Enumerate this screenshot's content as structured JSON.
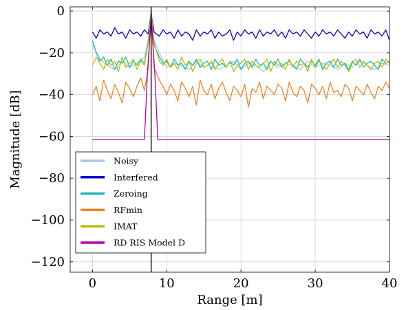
{
  "chart_data": {
    "type": "line",
    "xlabel": "Range [m]",
    "ylabel": "Magnitude [dB]",
    "xlim": [
      -3,
      40
    ],
    "ylim": [
      -125,
      2
    ],
    "xticks": [
      0,
      10,
      20,
      30,
      40
    ],
    "xtick_labels": [
      "0",
      "10",
      "20",
      "30",
      "40"
    ],
    "yticks": [
      0,
      -20,
      -40,
      -60,
      -80,
      -100,
      -120
    ],
    "ytick_labels": [
      "0",
      "−20",
      "−40",
      "−60",
      "−80",
      "−100",
      "−120"
    ],
    "grid": true,
    "legend_position": "bottom-left",
    "marker_line": {
      "x": 7.9,
      "color": "#000000"
    },
    "series": [
      {
        "name": "Noisy",
        "color": "#a6c8ee",
        "x": [
          0,
          1,
          2,
          3,
          4,
          5,
          6,
          7,
          7.5,
          7.9,
          8.3,
          9,
          10,
          11,
          12,
          13,
          14,
          15,
          16,
          17,
          18,
          19,
          20,
          21,
          22,
          23,
          24,
          25,
          26,
          27,
          28,
          29,
          30,
          31,
          32,
          33,
          34,
          35,
          36,
          37,
          38,
          39,
          40
        ],
        "y": [
          -16,
          -23,
          -26,
          -28,
          -24,
          -27,
          -25,
          -22,
          -14,
          0,
          -14,
          -20,
          -27,
          -25,
          -26,
          -28,
          -24,
          -27,
          -25,
          -28,
          -26,
          -24,
          -28,
          -25,
          -26,
          -29,
          -24,
          -27,
          -25,
          -26,
          -28,
          -24,
          -27,
          -25,
          -26,
          -28,
          -25,
          -27,
          -24,
          -26,
          -28,
          -25,
          -26
        ]
      },
      {
        "name": "Interfered",
        "color": "#0000cc",
        "x": [
          0,
          0.5,
          1,
          1.5,
          2,
          2.5,
          3,
          3.5,
          4,
          4.5,
          5,
          5.5,
          6,
          6.5,
          7,
          7.5,
          7.9,
          8.3,
          9,
          9.5,
          10,
          10.5,
          11,
          11.5,
          12,
          12.5,
          13,
          13.5,
          14,
          14.5,
          15,
          15.5,
          16,
          16.5,
          17,
          17.5,
          18,
          18.5,
          19,
          19.5,
          20,
          20.5,
          21,
          21.5,
          22,
          22.5,
          23,
          23.5,
          24,
          24.5,
          25,
          25.5,
          26,
          26.5,
          27,
          27.5,
          28,
          28.5,
          29,
          29.5,
          30,
          30.5,
          31,
          31.5,
          32,
          32.5,
          33,
          33.5,
          34,
          34.5,
          35,
          35.5,
          36,
          36.5,
          37,
          37.5,
          38,
          38.5,
          39,
          39.5,
          40
        ],
        "y": [
          -10,
          -13,
          -9,
          -11,
          -10,
          -12,
          -8,
          -11,
          -10,
          -13,
          -9,
          -11,
          -10,
          -12,
          -9,
          -11,
          -1,
          -10,
          -12,
          -9,
          -11,
          -10,
          -13,
          -9,
          -12,
          -10,
          -11,
          -14,
          -9,
          -12,
          -10,
          -11,
          -9,
          -13,
          -10,
          -12,
          -11,
          -9,
          -14,
          -10,
          -12,
          -9,
          -11,
          -10,
          -13,
          -9,
          -12,
          -10,
          -11,
          -9,
          -12,
          -10,
          -13,
          -9,
          -11,
          -10,
          -12,
          -9,
          -11,
          -13,
          -10,
          -12,
          -9,
          -11,
          -10,
          -12,
          -9,
          -11,
          -13,
          -10,
          -12,
          -9,
          -11,
          -10,
          -13,
          -9,
          -11,
          -10,
          -12,
          -9,
          -14
        ]
      },
      {
        "name": "Zeroing",
        "color": "#17b9b5",
        "x": [
          0,
          0.5,
          1,
          1.5,
          2,
          2.5,
          3,
          3.5,
          4,
          4.5,
          5,
          5.5,
          6,
          6.5,
          7,
          7.5,
          7.9,
          8.3,
          9,
          9.5,
          10,
          10.5,
          11,
          11.5,
          12,
          12.5,
          13,
          13.5,
          14,
          14.5,
          15,
          15.5,
          16,
          16.5,
          17,
          17.5,
          18,
          18.5,
          19,
          19.5,
          20,
          20.5,
          21,
          21.5,
          22,
          22.5,
          23,
          23.5,
          24,
          24.5,
          25,
          25.5,
          26,
          26.5,
          27,
          27.5,
          28,
          28.5,
          29,
          29.5,
          30,
          30.5,
          31,
          31.5,
          32,
          32.5,
          33,
          33.5,
          34,
          34.5,
          35,
          35.5,
          36,
          36.5,
          37,
          37.5,
          38,
          38.5,
          39,
          39.5,
          40
        ],
        "y": [
          -14,
          -20,
          -24,
          -22,
          -26,
          -23,
          -28,
          -24,
          -25,
          -22,
          -27,
          -24,
          -26,
          -23,
          -25,
          -15,
          0,
          -16,
          -22,
          -25,
          -24,
          -27,
          -23,
          -26,
          -25,
          -28,
          -24,
          -26,
          -23,
          -27,
          -25,
          -24,
          -28,
          -23,
          -26,
          -25,
          -27,
          -24,
          -26,
          -23,
          -28,
          -25,
          -24,
          -27,
          -23,
          -26,
          -25,
          -28,
          -24,
          -26,
          -23,
          -27,
          -25,
          -24,
          -26,
          -28,
          -23,
          -25,
          -27,
          -24,
          -26,
          -23,
          -28,
          -25,
          -24,
          -27,
          -23,
          -26,
          -25,
          -28,
          -24,
          -26,
          -23,
          -27,
          -25,
          -24,
          -26,
          -28,
          -23,
          -25,
          -24
        ]
      },
      {
        "name": "RFmin",
        "color": "#f5821f",
        "x": [
          0,
          0.5,
          1,
          1.5,
          2,
          2.5,
          3,
          3.5,
          4,
          4.5,
          5,
          5.5,
          6,
          6.5,
          7,
          7.5,
          7.9,
          8.3,
          9,
          9.5,
          10,
          10.5,
          11,
          11.5,
          12,
          12.5,
          13,
          13.5,
          14,
          14.5,
          15,
          15.5,
          16,
          16.5,
          17,
          17.5,
          18,
          18.5,
          19,
          19.5,
          20,
          20.5,
          21,
          21.5,
          22,
          22.5,
          23,
          23.5,
          24,
          24.5,
          25,
          25.5,
          26,
          26.5,
          27,
          27.5,
          28,
          28.5,
          29,
          29.5,
          30,
          30.5,
          31,
          31.5,
          32,
          32.5,
          33,
          33.5,
          34,
          34.5,
          35,
          35.5,
          36,
          36.5,
          37,
          37.5,
          38,
          38.5,
          39,
          39.5,
          40
        ],
        "y": [
          -40,
          -36,
          -43,
          -33,
          -38,
          -42,
          -35,
          -39,
          -44,
          -34,
          -37,
          -41,
          -36,
          -32,
          -38,
          -28,
          -2,
          -27,
          -33,
          -36,
          -40,
          -35,
          -38,
          -43,
          -34,
          -37,
          -41,
          -36,
          -45,
          -33,
          -38,
          -40,
          -35,
          -42,
          -37,
          -34,
          -39,
          -43,
          -36,
          -38,
          -41,
          -35,
          -46,
          -37,
          -39,
          -34,
          -42,
          -36,
          -38,
          -40,
          -35,
          -37,
          -43,
          -34,
          -39,
          -41,
          -36,
          -38,
          -44,
          -35,
          -37,
          -40,
          -36,
          -42,
          -34,
          -39,
          -38,
          -41,
          -35,
          -37,
          -43,
          -36,
          -38,
          -40,
          -35,
          -39,
          -42,
          -36,
          -38,
          -34,
          -37
        ]
      },
      {
        "name": "IMAT",
        "color": "#b5bd00",
        "x": [
          0,
          0.5,
          1,
          1.5,
          2,
          2.5,
          3,
          3.5,
          4,
          4.5,
          5,
          5.5,
          6,
          6.5,
          7,
          7.5,
          7.9,
          8.3,
          9,
          9.5,
          10,
          10.5,
          11,
          11.5,
          12,
          12.5,
          13,
          13.5,
          14,
          14.5,
          15,
          15.5,
          16,
          16.5,
          17,
          17.5,
          18,
          18.5,
          19,
          19.5,
          20,
          20.5,
          21,
          21.5,
          22,
          22.5,
          23,
          23.5,
          24,
          24.5,
          25,
          25.5,
          26,
          26.5,
          27,
          27.5,
          28,
          28.5,
          29,
          29.5,
          30,
          30.5,
          31,
          31.5,
          32,
          32.5,
          33,
          33.5,
          34,
          34.5,
          35,
          35.5,
          36,
          36.5,
          37,
          37.5,
          38,
          38.5,
          39,
          39.5,
          40
        ],
        "y": [
          -26,
          -22,
          -25,
          -28,
          -23,
          -26,
          -24,
          -29,
          -22,
          -27,
          -25,
          -23,
          -28,
          -24,
          -26,
          -15,
          -1,
          -15,
          -24,
          -26,
          -23,
          -27,
          -25,
          -28,
          -22,
          -26,
          -24,
          -29,
          -25,
          -23,
          -27,
          -26,
          -24,
          -28,
          -25,
          -23,
          -27,
          -24,
          -29,
          -26,
          -25,
          -23,
          -28,
          -24,
          -26,
          -27,
          -25,
          -23,
          -29,
          -24,
          -26,
          -25,
          -28,
          -23,
          -27,
          -24,
          -26,
          -25,
          -29,
          -23,
          -27,
          -24,
          -26,
          -28,
          -25,
          -23,
          -27,
          -24,
          -26,
          -29,
          -25,
          -23,
          -27,
          -24,
          -26,
          -28,
          -25,
          -24,
          -27,
          -23,
          -25
        ]
      },
      {
        "name": "RD RIS Model D",
        "color": "#b400b4",
        "x": [
          0,
          7.0,
          7.4,
          7.9,
          8.4,
          8.8,
          40
        ],
        "y": [
          -61.5,
          -61.5,
          -30,
          -2,
          -30,
          -61.5,
          -61.5
        ]
      }
    ]
  }
}
